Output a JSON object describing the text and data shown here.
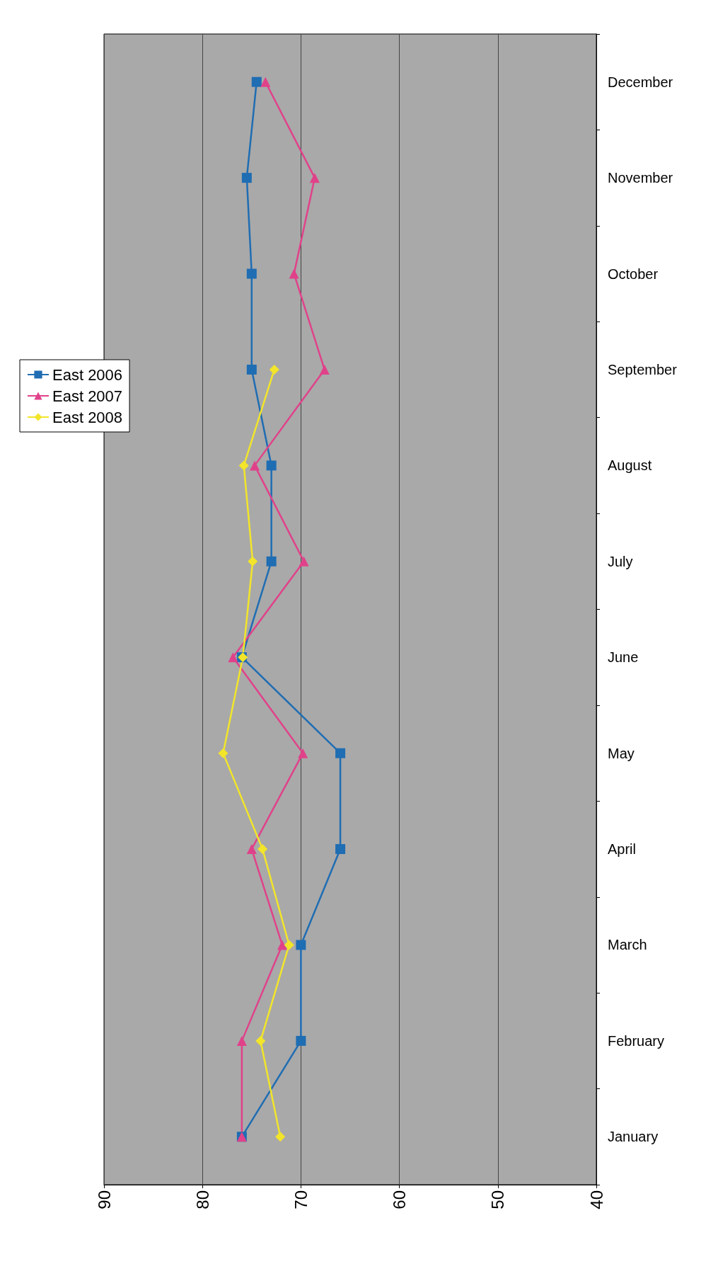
{
  "chart_data": {
    "type": "line",
    "orientation": "horizontal",
    "categories": [
      "December",
      "November",
      "October",
      "September",
      "August",
      "July",
      "June",
      "May",
      "April",
      "March",
      "February",
      "January"
    ],
    "series": [
      {
        "name": "East 2006",
        "color": "#1f6db3",
        "marker": "square",
        "values": [
          74.5,
          75.5,
          75,
          75,
          73,
          73,
          76,
          66,
          66,
          70,
          70,
          76
        ]
      },
      {
        "name": "East 2007",
        "color": "#e0428a",
        "marker": "triangle",
        "values": [
          73.6,
          68.6,
          70.7,
          67.6,
          74.7,
          69.7,
          76.9,
          69.8,
          75,
          71.9,
          76,
          76
        ]
      },
      {
        "name": "East 2008",
        "color": "#f2e52a",
        "marker": "diamond",
        "values": [
          null,
          null,
          null,
          72.7,
          75.8,
          74.9,
          75.9,
          77.9,
          73.9,
          71.2,
          74.1,
          72.1
        ]
      }
    ],
    "xlim": [
      90,
      40
    ],
    "xticks": [
      90,
      80,
      70,
      60,
      50,
      40
    ],
    "grid": "x",
    "legend": "left"
  }
}
